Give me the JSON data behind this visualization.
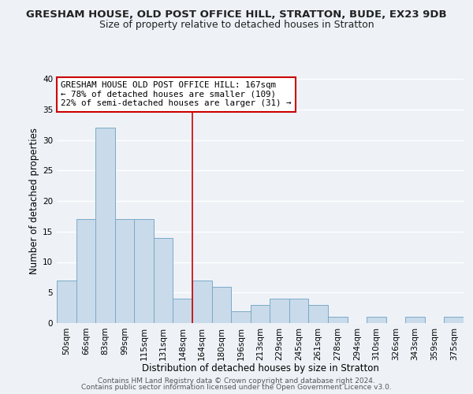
{
  "title": "GRESHAM HOUSE, OLD POST OFFICE HILL, STRATTON, BUDE, EX23 9DB",
  "subtitle": "Size of property relative to detached houses in Stratton",
  "xlabel": "Distribution of detached houses by size in Stratton",
  "ylabel": "Number of detached properties",
  "bar_color": "#c9daea",
  "bar_edge_color": "#7aaac8",
  "categories": [
    "50sqm",
    "66sqm",
    "83sqm",
    "99sqm",
    "115sqm",
    "131sqm",
    "148sqm",
    "164sqm",
    "180sqm",
    "196sqm",
    "213sqm",
    "229sqm",
    "245sqm",
    "261sqm",
    "278sqm",
    "294sqm",
    "310sqm",
    "326sqm",
    "343sqm",
    "359sqm",
    "375sqm"
  ],
  "values": [
    7,
    17,
    32,
    17,
    17,
    14,
    4,
    7,
    6,
    2,
    3,
    4,
    4,
    3,
    1,
    0,
    1,
    0,
    1,
    0,
    1
  ],
  "vline_idx": 7,
  "vline_color": "#cc0000",
  "ylim": [
    0,
    40
  ],
  "yticks": [
    0,
    5,
    10,
    15,
    20,
    25,
    30,
    35,
    40
  ],
  "annotation_title": "GRESHAM HOUSE OLD POST OFFICE HILL: 167sqm",
  "annotation_line1": "← 78% of detached houses are smaller (109)",
  "annotation_line2": "22% of semi-detached houses are larger (31) →",
  "footer1": "Contains HM Land Registry data © Crown copyright and database right 2024.",
  "footer2": "Contains public sector information licensed under the Open Government Licence v3.0.",
  "background_color": "#eef2f7",
  "grid_color": "#ffffff",
  "title_fontsize": 9.5,
  "subtitle_fontsize": 9,
  "axis_label_fontsize": 8.5,
  "tick_fontsize": 7.5,
  "footer_fontsize": 6.5,
  "annotation_fontsize": 7.8
}
